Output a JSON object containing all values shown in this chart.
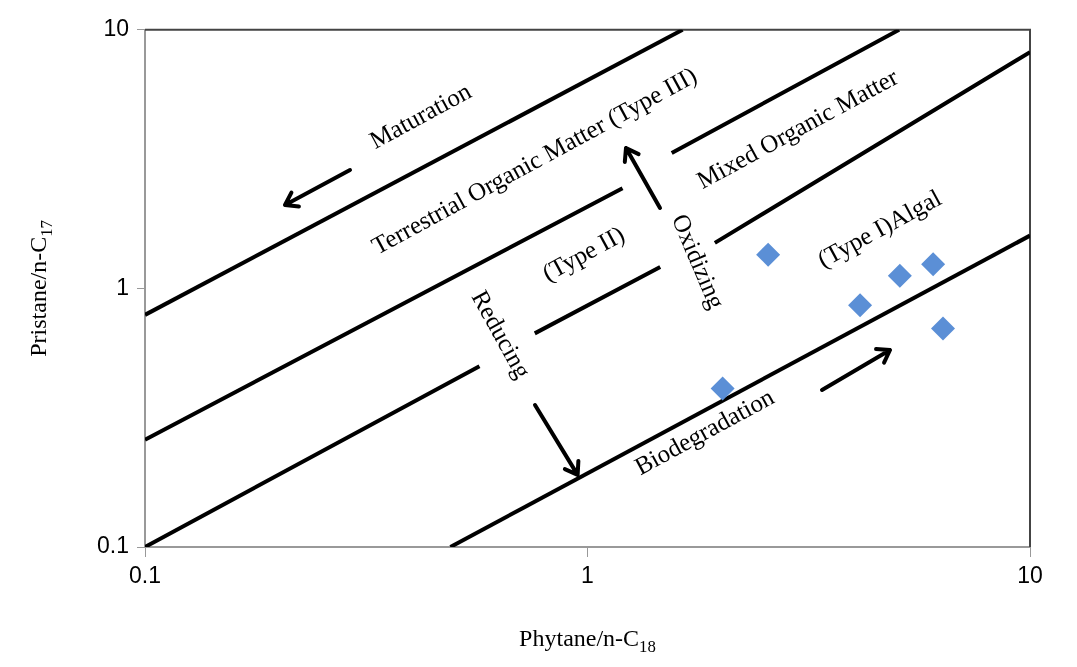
{
  "chart_data": {
    "type": "scatter",
    "xlabel": "Phytane/n-C$_{18}$",
    "ylabel": "Pristane/n-C$_{17}$",
    "log": "xy",
    "xlim": [
      0.1,
      10
    ],
    "ylim": [
      0.1,
      10
    ],
    "xticks": [
      0.1,
      1,
      10
    ],
    "yticks": [
      0.1,
      1,
      10
    ],
    "grid": false,
    "legend": false,
    "series": [
      {
        "color": "#5b8fd6",
        "marker": "diamond",
        "x": [
          2.02,
          2.56,
          4.13,
          5.08,
          6.04,
          6.36
        ],
        "values": [
          0.41,
          1.35,
          0.86,
          1.12,
          1.24,
          0.7
        ]
      },
      {
        "type": "line",
        "color": "#000000",
        "marker": "none",
        "x": [
          0.1,
          1.64
        ],
        "values": [
          0.79,
          10
        ]
      },
      {
        "type": "line",
        "color": "#000000",
        "marker": "none",
        "x": [
          0.1,
          1.2,
          1.4,
          1.55,
          5.06
        ],
        "values": [
          0.26,
          2.44,
          null,
          3.34,
          10
        ]
      },
      {
        "type": "line",
        "color": "#000000",
        "marker": "none",
        "x": [
          0.1,
          0.57,
          0.65,
          0.76,
          1.46,
          1.7,
          1.94,
          10
        ],
        "values": [
          0.1,
          0.5,
          null,
          0.67,
          1.21,
          null,
          1.5,
          8.2
        ]
      },
      {
        "type": "line",
        "color": "#000000",
        "marker": "none",
        "x": [
          0.49,
          10
        ],
        "values": [
          0.1,
          1.6
        ]
      }
    ],
    "annotations": [
      "Maturation",
      "Terrestrial Organic Matter (Type III)",
      "Mixed Organic Matter",
      "(Type II)",
      "(Type I)Algal",
      {
        "text": "Reducing",
        "x": 0.95,
        "y": 0.19
      },
      "Oxidizing",
      "Biodegradation"
    ]
  }
}
